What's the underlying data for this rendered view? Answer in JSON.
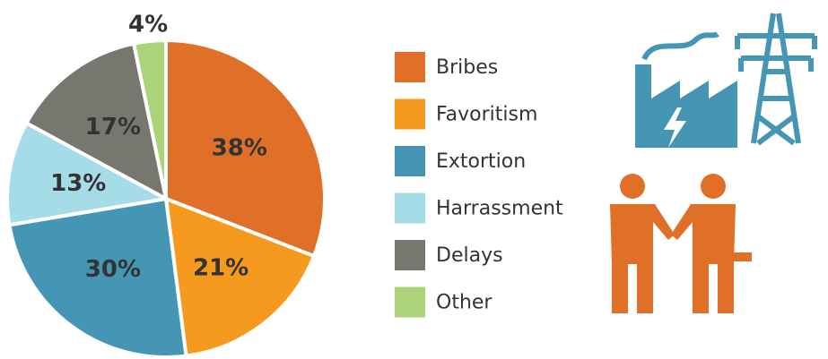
{
  "chart_data": {
    "type": "pie",
    "categories": [
      "Bribes",
      "Favoritism",
      "Extortion",
      "Harrassment",
      "Delays",
      "Other"
    ],
    "values": [
      38,
      21,
      30,
      13,
      17,
      4
    ],
    "value_labels": [
      "38%",
      "21%",
      "30%",
      "13%",
      "17%",
      "4%"
    ],
    "colors": [
      "#e07028",
      "#f59a1e",
      "#4596b4",
      "#a6dbe8",
      "#77766f",
      "#acd37a"
    ]
  }
}
